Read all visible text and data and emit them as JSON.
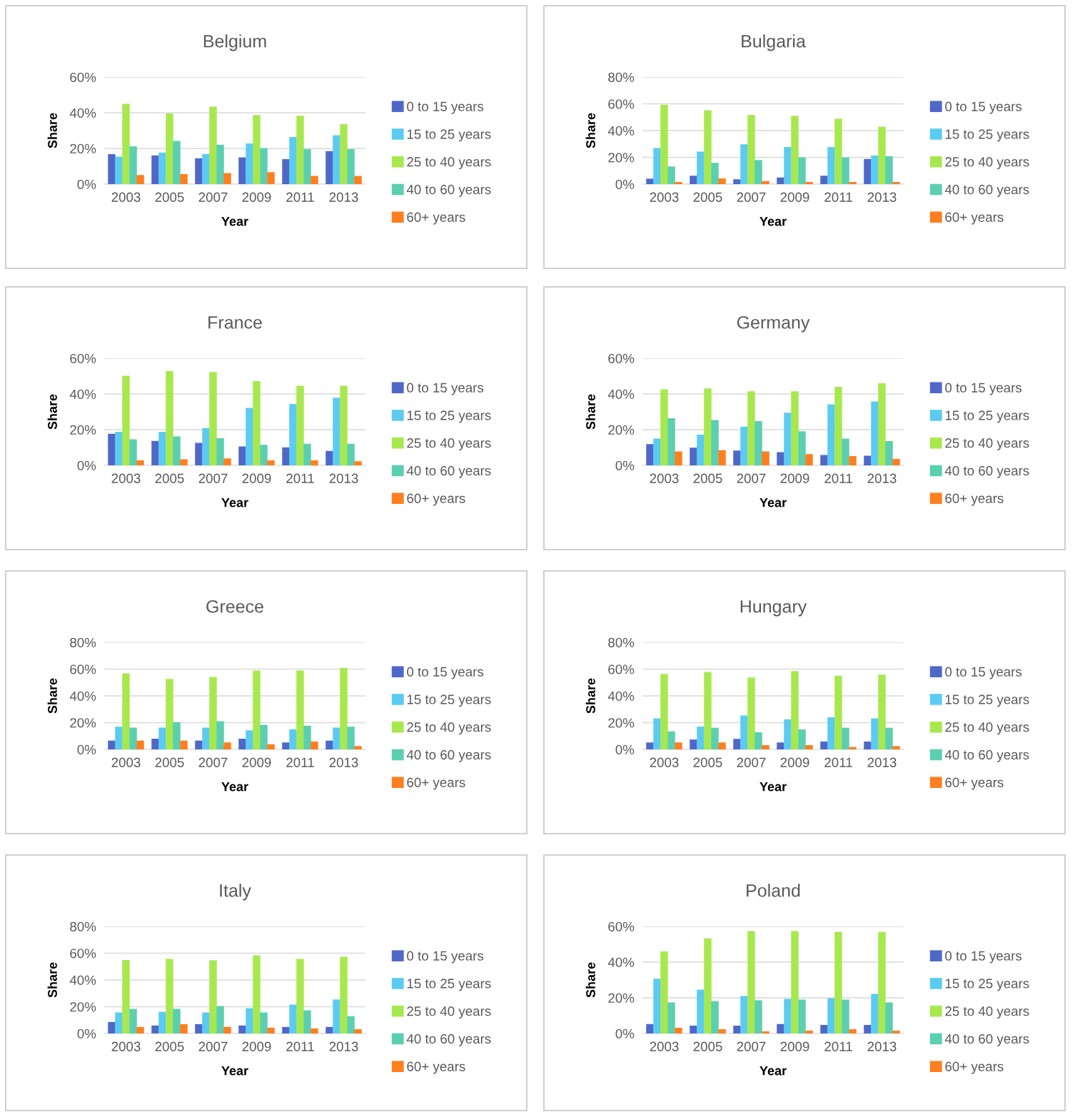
{
  "chart_data": [
    {
      "type": "bar",
      "title": "Belgium",
      "xlabel": "Year",
      "ylabel": "Share",
      "categories": [
        "2003",
        "2005",
        "2007",
        "2009",
        "2011",
        "2013"
      ],
      "ylim": [
        0,
        60
      ],
      "yticks": [
        {
          "value": 0,
          "label": "0%"
        },
        {
          "value": 20,
          "label": "20%"
        },
        {
          "value": 40,
          "label": "40%"
        },
        {
          "value": 60,
          "label": "60%"
        }
      ],
      "grid": "y",
      "legend": "right",
      "series": [
        {
          "name": "0 to 15 years",
          "color": "#4f68c8",
          "values": [
            16.8,
            16.1,
            14.5,
            15.0,
            14.0,
            18.5
          ]
        },
        {
          "name": "15 to 25 years",
          "color": "#5ccbf2",
          "values": [
            15.4,
            17.7,
            16.9,
            22.8,
            26.4,
            27.4
          ]
        },
        {
          "name": "25 to 40 years",
          "color": "#a8e84f",
          "values": [
            45.0,
            39.6,
            43.4,
            38.7,
            38.3,
            33.6
          ]
        },
        {
          "name": "40 to 60 years",
          "color": "#5ccfb0",
          "values": [
            21.2,
            24.2,
            22.1,
            20.1,
            19.6,
            19.6
          ]
        },
        {
          "name": "60+ years",
          "color": "#fd7f1f",
          "values": [
            5.1,
            5.6,
            6.2,
            6.7,
            4.6,
            4.6
          ]
        }
      ]
    },
    {
      "type": "bar",
      "title": "Bulgaria",
      "xlabel": "Year",
      "ylabel": "Share",
      "categories": [
        "2003",
        "2005",
        "2007",
        "2009",
        "2011",
        "2013"
      ],
      "ylim": [
        0,
        80
      ],
      "yticks": [
        {
          "value": 0,
          "label": "0%"
        },
        {
          "value": 20,
          "label": "20%"
        },
        {
          "value": 40,
          "label": "40%"
        },
        {
          "value": 60,
          "label": "60%"
        },
        {
          "value": 80,
          "label": "80%"
        }
      ],
      "grid": "y",
      "legend": "right",
      "series": [
        {
          "name": "0 to 15 years",
          "color": "#4f68c8",
          "values": [
            4.1,
            6.3,
            3.6,
            5.0,
            6.3,
            18.8
          ]
        },
        {
          "name": "15 to 25 years",
          "color": "#5ccbf2",
          "values": [
            27.0,
            24.3,
            29.8,
            27.7,
            27.7,
            21.4
          ]
        },
        {
          "name": "25 to 40 years",
          "color": "#a8e84f",
          "values": [
            59.3,
            55.2,
            51.8,
            51.1,
            48.9,
            42.9
          ]
        },
        {
          "name": "40 to 60 years",
          "color": "#5ccfb0",
          "values": [
            13.2,
            15.9,
            18.0,
            20.0,
            20.0,
            20.9
          ]
        },
        {
          "name": "60+ years",
          "color": "#fd7f1f",
          "values": [
            1.6,
            4.3,
            2.3,
            1.6,
            1.6,
            1.6
          ]
        }
      ]
    },
    {
      "type": "bar",
      "title": "France",
      "xlabel": "Year",
      "ylabel": "Share",
      "categories": [
        "2003",
        "2005",
        "2007",
        "2009",
        "2011",
        "2013"
      ],
      "ylim": [
        0,
        60
      ],
      "yticks": [
        {
          "value": 0,
          "label": "0%"
        },
        {
          "value": 20,
          "label": "20%"
        },
        {
          "value": 40,
          "label": "40%"
        },
        {
          "value": 60,
          "label": "60%"
        }
      ],
      "grid": "y",
      "legend": "right",
      "series": [
        {
          "name": "0 to 15 years",
          "color": "#4f68c8",
          "values": [
            17.7,
            13.7,
            12.6,
            10.6,
            10.1,
            8.1
          ]
        },
        {
          "name": "15 to 25 years",
          "color": "#5ccbf2",
          "values": [
            18.8,
            18.8,
            20.9,
            32.2,
            34.4,
            37.9
          ]
        },
        {
          "name": "25 to 40 years",
          "color": "#a8e84f",
          "values": [
            50.2,
            52.9,
            52.3,
            47.2,
            44.6,
            44.6
          ]
        },
        {
          "name": "40 to 60 years",
          "color": "#5ccfb0",
          "values": [
            14.6,
            16.2,
            15.2,
            11.5,
            12.1,
            12.1
          ]
        },
        {
          "name": "60+ years",
          "color": "#fd7f1f",
          "values": [
            2.8,
            3.4,
            3.9,
            2.8,
            2.8,
            2.3
          ]
        }
      ]
    },
    {
      "type": "bar",
      "title": "Germany",
      "xlabel": "Year",
      "ylabel": "Share",
      "categories": [
        "2003",
        "2005",
        "2007",
        "2009",
        "2011",
        "2013"
      ],
      "ylim": [
        0,
        60
      ],
      "yticks": [
        {
          "value": 0,
          "label": "0%"
        },
        {
          "value": 20,
          "label": "20%"
        },
        {
          "value": 40,
          "label": "40%"
        },
        {
          "value": 60,
          "label": "60%"
        }
      ],
      "grid": "y",
      "legend": "right",
      "series": [
        {
          "name": "0 to 15 years",
          "color": "#4f68c8",
          "values": [
            11.9,
            9.9,
            8.3,
            7.4,
            5.8,
            5.4
          ]
        },
        {
          "name": "15 to 25 years",
          "color": "#5ccbf2",
          "values": [
            15.0,
            17.2,
            21.7,
            29.5,
            34.2,
            35.8
          ]
        },
        {
          "name": "25 to 40 years",
          "color": "#a8e84f",
          "values": [
            42.6,
            43.1,
            41.5,
            41.5,
            44.0,
            46.0
          ]
        },
        {
          "name": "40 to 60 years",
          "color": "#5ccfb0",
          "values": [
            26.4,
            25.4,
            24.8,
            19.1,
            15.0,
            13.6
          ]
        },
        {
          "name": "60+ years",
          "color": "#fd7f1f",
          "values": [
            7.8,
            8.5,
            7.8,
            6.3,
            5.2,
            3.6
          ]
        }
      ]
    },
    {
      "type": "bar",
      "title": "Greece",
      "xlabel": "Year",
      "ylabel": "Share",
      "categories": [
        "2003",
        "2005",
        "2007",
        "2009",
        "2011",
        "2013"
      ],
      "ylim": [
        0,
        80
      ],
      "yticks": [
        {
          "value": 0,
          "label": "0%"
        },
        {
          "value": 20,
          "label": "20%"
        },
        {
          "value": 40,
          "label": "40%"
        },
        {
          "value": 60,
          "label": "60%"
        },
        {
          "value": 80,
          "label": "80%"
        }
      ],
      "grid": "y",
      "legend": "right",
      "series": [
        {
          "name": "0 to 15 years",
          "color": "#4f68c8",
          "values": [
            6.6,
            8.0,
            6.6,
            8.0,
            5.2,
            6.6
          ]
        },
        {
          "name": "15 to 25 years",
          "color": "#5ccbf2",
          "values": [
            17.0,
            16.3,
            16.3,
            14.3,
            15.0,
            16.3
          ]
        },
        {
          "name": "25 to 40 years",
          "color": "#a8e84f",
          "values": [
            56.8,
            52.7,
            54.1,
            58.9,
            58.9,
            60.9
          ]
        },
        {
          "name": "40 to 60 years",
          "color": "#5ccfb0",
          "values": [
            16.3,
            20.4,
            21.1,
            18.4,
            17.7,
            17.0
          ]
        },
        {
          "name": "60+ years",
          "color": "#fd7f1f",
          "values": [
            6.6,
            6.6,
            5.2,
            3.9,
            5.9,
            2.5
          ]
        }
      ]
    },
    {
      "type": "bar",
      "title": "Hungary",
      "xlabel": "Year",
      "ylabel": "Share",
      "categories": [
        "2003",
        "2005",
        "2007",
        "2009",
        "2011",
        "2013"
      ],
      "ylim": [
        0,
        80
      ],
      "yticks": [
        {
          "value": 0,
          "label": "0%"
        },
        {
          "value": 20,
          "label": "20%"
        },
        {
          "value": 40,
          "label": "40%"
        },
        {
          "value": 60,
          "label": "60%"
        },
        {
          "value": 80,
          "label": "80%"
        }
      ],
      "grid": "y",
      "legend": "right",
      "series": [
        {
          "name": "0 to 15 years",
          "color": "#4f68c8",
          "values": [
            5.2,
            7.4,
            7.9,
            5.2,
            5.9,
            5.9
          ]
        },
        {
          "name": "15 to 25 years",
          "color": "#5ccbf2",
          "values": [
            23.2,
            17.1,
            25.4,
            22.5,
            24.0,
            23.2
          ]
        },
        {
          "name": "25 to 40 years",
          "color": "#a8e84f",
          "values": [
            56.4,
            57.8,
            53.7,
            58.6,
            55.1,
            55.9
          ]
        },
        {
          "name": "40 to 60 years",
          "color": "#5ccfb0",
          "values": [
            13.5,
            16.2,
            12.8,
            15.0,
            16.2,
            16.2
          ]
        },
        {
          "name": "60+ years",
          "color": "#fd7f1f",
          "values": [
            5.2,
            5.2,
            3.2,
            3.2,
            1.8,
            2.5
          ]
        }
      ]
    },
    {
      "type": "bar",
      "title": "Italy",
      "xlabel": "Year",
      "ylabel": "Share",
      "categories": [
        "2003",
        "2005",
        "2007",
        "2009",
        "2011",
        "2013"
      ],
      "ylim": [
        0,
        80
      ],
      "yticks": [
        {
          "value": 0,
          "label": "0%"
        },
        {
          "value": 20,
          "label": "20%"
        },
        {
          "value": 40,
          "label": "40%"
        },
        {
          "value": 60,
          "label": "60%"
        },
        {
          "value": 80,
          "label": "80%"
        }
      ],
      "grid": "y",
      "legend": "right",
      "series": [
        {
          "name": "0 to 15 years",
          "color": "#4f68c8",
          "values": [
            8.6,
            6.0,
            7.0,
            6.0,
            4.9,
            4.9
          ]
        },
        {
          "name": "15 to 25 years",
          "color": "#5ccbf2",
          "values": [
            15.7,
            16.2,
            15.7,
            18.9,
            21.6,
            25.4
          ]
        },
        {
          "name": "25 to 40 years",
          "color": "#a8e84f",
          "values": [
            55.0,
            55.7,
            54.6,
            58.4,
            55.7,
            57.3
          ]
        },
        {
          "name": "40 to 60 years",
          "color": "#5ccfb0",
          "values": [
            18.4,
            18.4,
            20.5,
            15.7,
            17.3,
            13.0
          ]
        },
        {
          "name": "60+ years",
          "color": "#fd7f1f",
          "values": [
            4.9,
            7.0,
            4.9,
            4.3,
            3.8,
            3.2
          ]
        }
      ]
    },
    {
      "type": "bar",
      "title": "Poland",
      "xlabel": "Year",
      "ylabel": "Share",
      "categories": [
        "2003",
        "2005",
        "2007",
        "2009",
        "2011",
        "2013"
      ],
      "ylim": [
        0,
        60
      ],
      "yticks": [
        {
          "value": 0,
          "label": "0%"
        },
        {
          "value": 20,
          "label": "20%"
        },
        {
          "value": 40,
          "label": "40%"
        },
        {
          "value": 60,
          "label": "60%"
        }
      ],
      "grid": "y",
      "legend": "right",
      "series": [
        {
          "name": "0 to 15 years",
          "color": "#4f68c8",
          "values": [
            5.3,
            4.4,
            4.4,
            5.3,
            4.8,
            4.8
          ]
        },
        {
          "name": "15 to 25 years",
          "color": "#5ccbf2",
          "values": [
            30.7,
            24.6,
            21.0,
            19.4,
            19.8,
            22.2
          ]
        },
        {
          "name": "25 to 40 years",
          "color": "#a8e84f",
          "values": [
            46.0,
            53.3,
            57.4,
            57.4,
            57.0,
            57.0
          ]
        },
        {
          "name": "40 to 60 years",
          "color": "#5ccfb0",
          "values": [
            17.4,
            18.2,
            18.6,
            19.0,
            19.0,
            17.4
          ]
        },
        {
          "name": "60+ years",
          "color": "#fd7f1f",
          "values": [
            3.2,
            2.4,
            1.2,
            1.6,
            2.4,
            1.6
          ]
        }
      ]
    }
  ]
}
